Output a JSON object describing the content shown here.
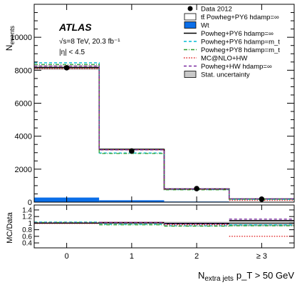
{
  "chart_data": [
    {
      "type": "histogram",
      "experiment_label": "ATLAS",
      "info_lines": [
        "√s=8 TeV, 20.3 fb⁻¹",
        "|η| < 4.5"
      ],
      "ylabel": "N_events",
      "ylabel_main": "N",
      "ylabel_sub": "events",
      "xlabel_main": "N",
      "xlabel_sub": "extra jets",
      "xlabel_cut": "p_T > 50 GeV",
      "categories": [
        "0",
        "1",
        "2",
        "≥ 3"
      ],
      "ylim": [
        0,
        12000
      ],
      "yticks": [
        0,
        2000,
        4000,
        6000,
        8000,
        10000
      ],
      "data_points": {
        "name": "Data 2012",
        "values": [
          8150,
          3100,
          820,
          180
        ]
      },
      "stack": [
        {
          "name": "Wt",
          "color": "#0a6ee8",
          "values": [
            280,
            120,
            40,
            15
          ]
        },
        {
          "name": "tt̄ Powheg+PY6 hdamp=∞",
          "color": "#ffffff",
          "values": [
            7880,
            3080,
            760,
            180
          ]
        }
      ],
      "series": [
        {
          "name": "Powheg+PY6 hdamp=∞",
          "color": "#000000",
          "dash": "solid",
          "values": [
            8160,
            3200,
            800,
            195
          ]
        },
        {
          "name": "Powheg+PY6 hdamp=m_t",
          "color": "#00bcd4",
          "dash": "dashed",
          "values": [
            8450,
            2980,
            760,
            170
          ]
        },
        {
          "name": "Powheg+PY8 hdamp=m_t",
          "color": "#2e9e2e",
          "dash": "dashdot",
          "values": [
            8350,
            2950,
            750,
            185
          ]
        },
        {
          "name": "MC@NLO+HW",
          "color": "#e02020",
          "dash": "dotted",
          "values": [
            8100,
            3180,
            780,
            110
          ]
        },
        {
          "name": "Powheg+HW hdamp=∞",
          "color": "#7a2aa0",
          "dash": "dashed",
          "values": [
            8250,
            3170,
            800,
            200
          ]
        }
      ],
      "stat_uncertainty_label": "Stat. uncertainty"
    },
    {
      "type": "ratio",
      "ylabel": "MC/Data",
      "ylim": [
        0.25,
        1.55
      ],
      "yticks": [
        0.4,
        0.6,
        0.8,
        1.0,
        1.2,
        1.4
      ],
      "ytick_labels": [
        "0.4",
        "0.6",
        "0.8",
        "1",
        "1.2",
        "1.4"
      ],
      "xtick_labels": [
        "0",
        "1",
        "2",
        "≥  3"
      ],
      "series": [
        {
          "name": "Powheg+PY6 hdamp=∞",
          "values": [
            1.0,
            1.02,
            0.98,
            1.08
          ]
        },
        {
          "name": "Powheg+PY6 hdamp=m_t",
          "values": [
            1.03,
            0.96,
            0.92,
            0.95
          ]
        },
        {
          "name": "Powheg+PY8 hdamp=m_t",
          "values": [
            1.02,
            0.95,
            0.91,
            0.92
          ]
        },
        {
          "name": "MC@NLO+HW",
          "values": [
            0.99,
            1.02,
            0.95,
            0.6
          ]
        },
        {
          "name": "Powheg+HW hdamp=∞",
          "values": [
            1.01,
            1.02,
            0.98,
            1.12
          ]
        }
      ],
      "stat_uncertainty": [
        0.01,
        0.02,
        0.04,
        0.09
      ]
    }
  ]
}
